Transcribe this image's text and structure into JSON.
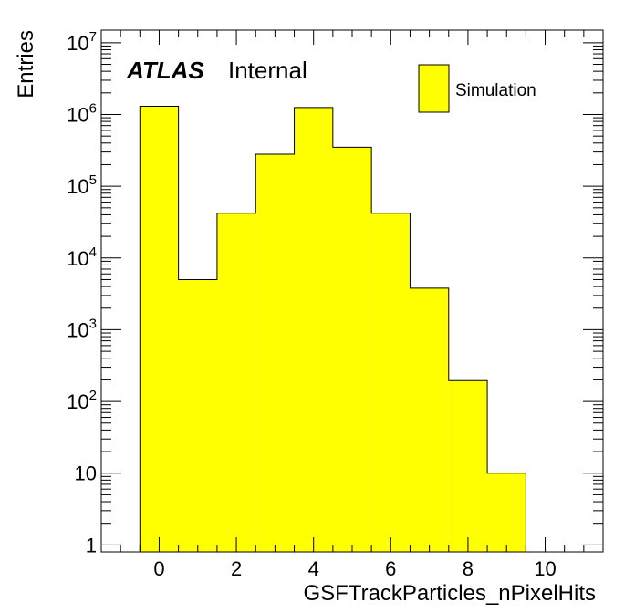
{
  "chart_data": {
    "type": "bar",
    "histogram": true,
    "xlabel": "GSFTrackParticles_nPixelHits",
    "ylabel": "Entries",
    "xlim": [
      -1.5,
      11.5
    ],
    "ylim": [
      0.8,
      15000000
    ],
    "yscale": "log",
    "grid": false,
    "legend_position": "top-right",
    "bin_width": 1,
    "bin_centers": [
      0,
      1,
      2,
      3,
      4,
      5,
      6,
      7,
      8,
      9
    ],
    "series": [
      {
        "name": "Simulation",
        "color": "#ffff00",
        "values": [
          1300000,
          5000,
          42000,
          280000,
          1250000,
          350000,
          42000,
          3800,
          195,
          10
        ]
      }
    ],
    "x_tick_labels": [
      "0",
      "2",
      "4",
      "6",
      "8",
      "10"
    ],
    "y_tick_labels": [
      {
        "base": "1",
        "exp": ""
      },
      {
        "base": "10",
        "exp": ""
      },
      {
        "base": "10",
        "exp": "2"
      },
      {
        "base": "10",
        "exp": "3"
      },
      {
        "base": "10",
        "exp": "4"
      },
      {
        "base": "10",
        "exp": "5"
      },
      {
        "base": "10",
        "exp": "6"
      },
      {
        "base": "10",
        "exp": "7"
      }
    ],
    "atlas_label": "ATLAS",
    "atlas_sublabel": "Internal"
  }
}
